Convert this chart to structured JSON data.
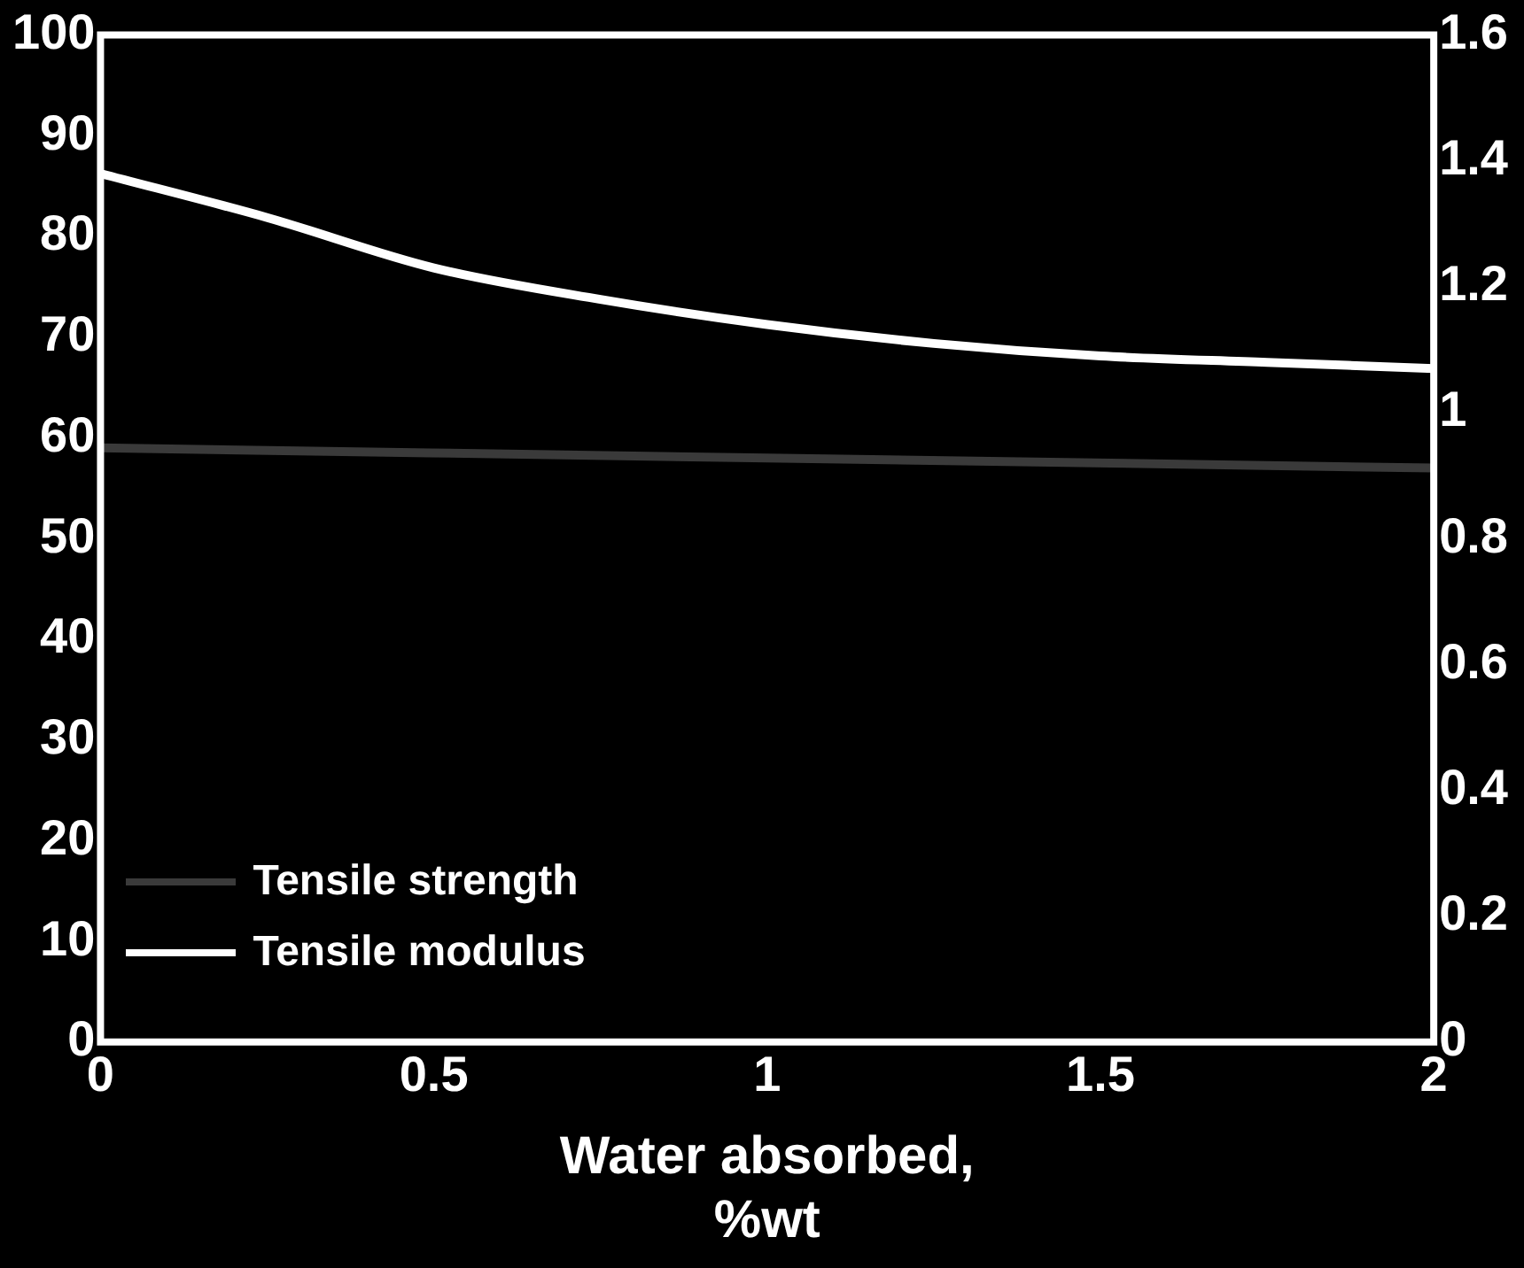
{
  "chart_data": {
    "type": "line",
    "xlabel": "Water absorbed,\n%wt",
    "x": [
      0,
      0.25,
      0.5,
      0.75,
      1,
      1.25,
      1.5,
      1.75,
      2
    ],
    "series": [
      {
        "name": "Tensile strength",
        "color": "#3a3a3a",
        "x": [
          0,
          1,
          2
        ],
        "values": [
          59,
          58,
          57
        ]
      },
      {
        "name": "Tensile modulus",
        "color": "#ffffff",
        "axis": "y2",
        "values": [
          1.38,
          1.31,
          1.23,
          1.18,
          1.14,
          1.11,
          1.09,
          1.08,
          1.07
        ]
      }
    ],
    "xlim": [
      0,
      2
    ],
    "xticks": [
      0,
      0.5,
      1,
      1.5,
      2
    ],
    "ylim": [
      0,
      100
    ],
    "yticks": [
      0,
      10,
      20,
      30,
      40,
      50,
      60,
      70,
      80,
      90,
      100
    ],
    "y2lim": [
      0,
      1.6
    ],
    "y2ticks": [
      0,
      0.2,
      0.4,
      0.6,
      0.8,
      1.0,
      1.2,
      1.4,
      1.6
    ],
    "grid": false,
    "legend": "bottom left",
    "marker": "none",
    "line_style": "solid"
  }
}
